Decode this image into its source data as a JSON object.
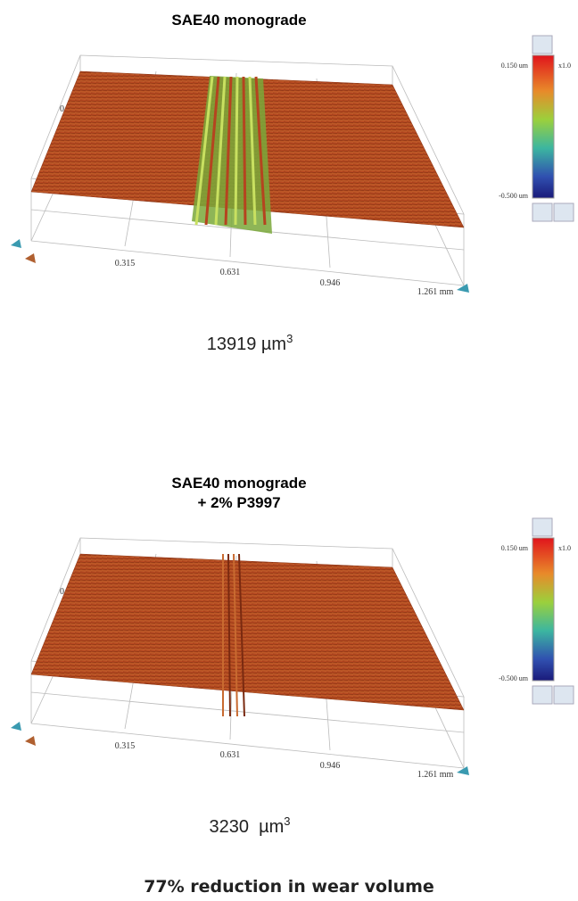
{
  "panels": [
    {
      "title": [
        "SAE40 monograde"
      ],
      "z_label": "0",
      "axis_labels": [
        "0.315",
        "0.631",
        "0.946",
        "1.261 mm"
      ],
      "colorbar": {
        "max": "0.150 um",
        "min": "-0.500 um",
        "scale": "x1.0"
      },
      "volume": {
        "value": "13919 µm",
        "exponent": "3"
      }
    },
    {
      "title": [
        "SAE40 monograde",
        "+ 2% P3997"
      ],
      "z_label": "0",
      "axis_labels": [
        "0.315",
        "0.631",
        "0.946",
        "1.261 mm"
      ],
      "colorbar": {
        "max": "0.150 um",
        "min": "-0.500 um",
        "scale": "x1.0"
      },
      "volume": {
        "value": "3230  µm",
        "exponent": "3"
      }
    }
  ],
  "caption": "77% reduction in wear volume"
}
